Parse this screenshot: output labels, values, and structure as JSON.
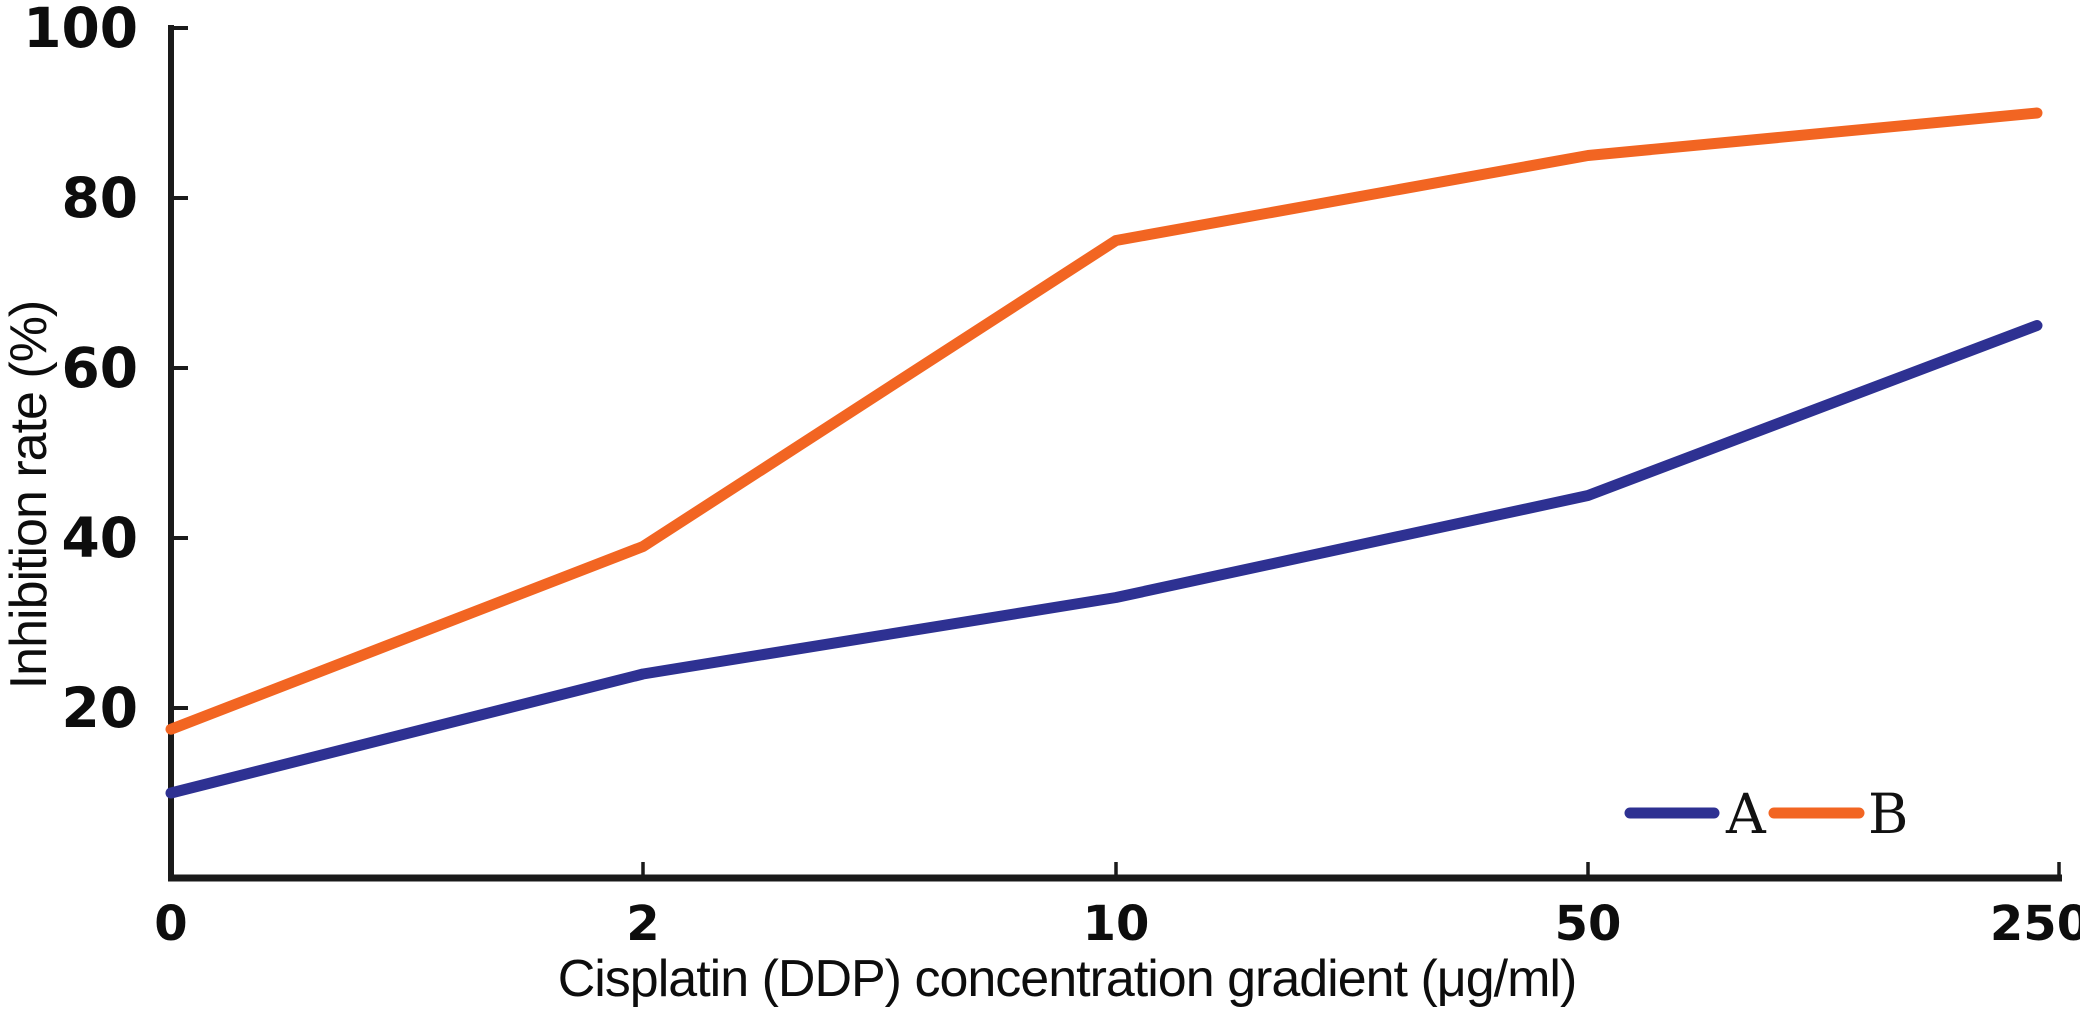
{
  "figure": {
    "background_color": "#ffffff",
    "axis_color": "#1a1a1a",
    "text_color": "#0d0d0d"
  },
  "chart_data": {
    "type": "line",
    "title": "",
    "xlabel": "Cisplatin (DDP) concentration gradient (μg/ml)",
    "ylabel": "Inhibition rate (%)",
    "categories": [
      "0",
      "2",
      "10",
      "50",
      "250"
    ],
    "series": [
      {
        "name": "A",
        "color": "#2e3192",
        "values": [
          10,
          24,
          33,
          45,
          65
        ]
      },
      {
        "name": "B",
        "color": "#f26522",
        "values": [
          17.5,
          39,
          75,
          85,
          90
        ]
      }
    ],
    "ylim": [
      0,
      100
    ],
    "yticks": [
      20,
      40,
      60,
      80,
      100
    ],
    "grid": false,
    "legend": {
      "position": "inside-bottom-right",
      "entries": [
        "A",
        "B"
      ]
    }
  }
}
